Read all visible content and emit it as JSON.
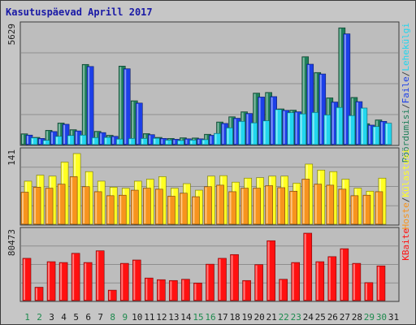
{
  "chart_data": {
    "type": "bar",
    "title": "Kasutuspäevad Aprill 2017",
    "categories": [
      "1",
      "2",
      "3",
      "4",
      "5",
      "6",
      "7",
      "8",
      "9",
      "10",
      "11",
      "12",
      "13",
      "14",
      "15",
      "16",
      "17",
      "18",
      "19",
      "20",
      "21",
      "22",
      "23",
      "24",
      "25",
      "26",
      "27",
      "28",
      "29",
      "30",
      "31"
    ],
    "weekend_days": [
      "1",
      "2",
      "8",
      "9",
      "15",
      "16",
      "22",
      "23",
      "29",
      "30"
    ],
    "panels": [
      {
        "name": "hits-files-pages",
        "ymax_label": "5629",
        "ylim": [
          0,
          5629
        ],
        "legend": [
          "Pöördumisi",
          "/",
          "Faile",
          "/",
          "Lehekülgi"
        ],
        "series": [
          {
            "name": "Pöördumisi",
            "color": "#1f7f5a",
            "values": [
              520,
              350,
              690,
              1040,
              720,
              3860,
              640,
              450,
              3780,
              2110,
              530,
              350,
              300,
              330,
              320,
              500,
              1090,
              1340,
              1580,
              2480,
              2510,
              1720,
              1660,
              4230,
              3470,
              2250,
              5620,
              2270,
              1010,
              1190,
              0
            ]
          },
          {
            "name": "Faile",
            "color": "#1c3fe8",
            "values": [
              460,
              300,
              630,
              980,
              660,
              3760,
              580,
              400,
              3650,
              2000,
              480,
              300,
              260,
              280,
              280,
              450,
              1020,
              1270,
              1500,
              2290,
              2310,
              1650,
              1580,
              3870,
              3400,
              2050,
              5330,
              2070,
              940,
              1120,
              0
            ]
          },
          {
            "name": "Lehekülgi",
            "color": "#22d6ee",
            "values": [
              330,
              210,
              400,
              440,
              460,
              340,
              350,
              270,
              300,
              300,
              310,
              220,
              200,
              220,
              240,
              540,
              810,
              1120,
              1050,
              1150,
              1690,
              1540,
              1480,
              1550,
              1430,
              1790,
              1400,
              1760,
              870,
              1030,
              0
            ]
          }
        ]
      },
      {
        "name": "visits-hosts",
        "ymax_label": "141",
        "ylim": [
          0,
          141
        ],
        "legend": [
          "Hoste",
          "/",
          "Külastusi"
        ],
        "series": [
          {
            "name": "Külastusi",
            "color": "#ffff22",
            "values": [
              86,
              98,
              96,
              124,
              141,
              105,
              86,
              74,
              72,
              86,
              90,
              95,
              72,
              81,
              68,
              96,
              97,
              84,
              92,
              93,
              96,
              96,
              82,
              120,
              108,
              105,
              90,
              72,
              66,
              92,
              0
            ]
          },
          {
            "name": "Hoste",
            "color": "#f7941d",
            "values": [
              64,
              74,
              72,
              80,
              95,
              75,
              65,
              57,
              58,
              68,
              72,
              70,
              56,
              62,
              55,
              75,
              78,
              65,
              72,
              72,
              77,
              73,
              66,
              90,
              80,
              78,
              70,
              57,
              58,
              65,
              0
            ]
          }
        ]
      },
      {
        "name": "kbytes",
        "ymax_label": "80473",
        "ylim": [
          0,
          80473
        ],
        "legend": [
          "KBaite"
        ],
        "series": [
          {
            "name": "KBaite",
            "color": "#ff1111",
            "values": [
              50500,
              16000,
              46500,
              45500,
              56500,
              45500,
              59500,
              12500,
              44500,
              48500,
              27000,
              25000,
              24000,
              25500,
              21000,
              43500,
              50500,
              55000,
              24000,
              43000,
              71500,
              25500,
              45500,
              80500,
              46500,
              52500,
              62000,
              44500,
              21500,
              41500,
              0
            ]
          }
        ]
      }
    ]
  }
}
